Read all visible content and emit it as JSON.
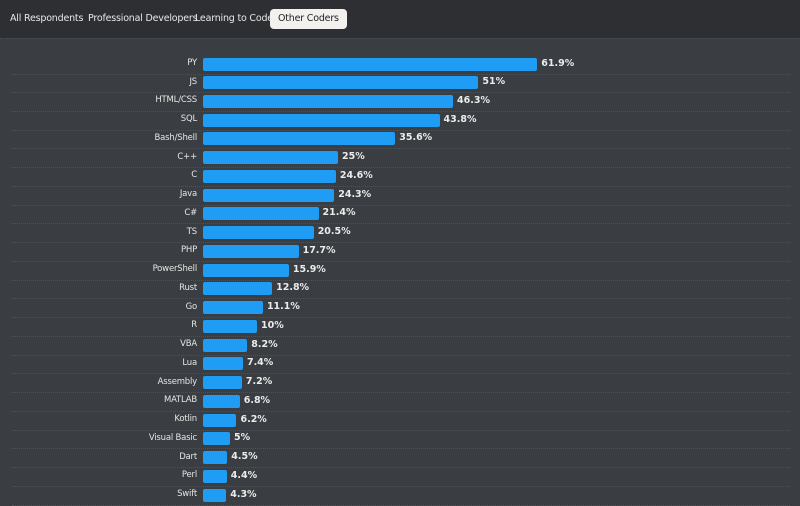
{
  "tabs": [
    {
      "label": "All Respondents",
      "active": false
    },
    {
      "label": "Professional Developers",
      "active": false
    },
    {
      "label": "Learning to Code",
      "active": false
    },
    {
      "label": "Other Coders",
      "active": true
    }
  ],
  "colors": {
    "bar": "#1f9df5",
    "background": "#3a3d41",
    "topbar": "#2d2f33"
  },
  "chart_data": {
    "type": "bar",
    "orientation": "horizontal",
    "categories": [
      "PY",
      "JS",
      "HTML/CSS",
      "SQL",
      "Bash/Shell",
      "C++",
      "C",
      "Java",
      "C#",
      "TS",
      "PHP",
      "PowerShell",
      "Rust",
      "Go",
      "R",
      "VBA",
      "Lua",
      "Assembly",
      "MATLAB",
      "Kotlin",
      "Visual Basic",
      "Dart",
      "Perl",
      "Swift"
    ],
    "values": [
      61.9,
      51,
      46.3,
      43.8,
      35.6,
      25,
      24.6,
      24.3,
      21.4,
      20.5,
      17.7,
      15.9,
      12.8,
      11.1,
      10,
      8.2,
      7.4,
      7.2,
      6.8,
      6.2,
      5,
      4.5,
      4.4,
      4.3
    ],
    "data_labels": [
      "61.9%",
      "51%",
      "46.3%",
      "43.8%",
      "35.6%",
      "25%",
      "24.6%",
      "24.3%",
      "21.4%",
      "20.5%",
      "17.7%",
      "15.9%",
      "12.8%",
      "11.1%",
      "10%",
      "8.2%",
      "7.4%",
      "7.2%",
      "6.8%",
      "6.2%",
      "5%",
      "4.5%",
      "4.4%",
      "4.3%"
    ],
    "unit": "%",
    "grid": false
  }
}
